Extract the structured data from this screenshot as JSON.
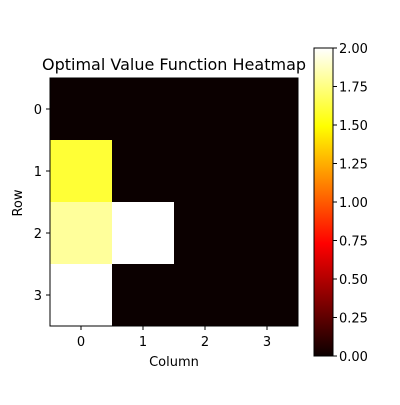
{
  "chart_data": {
    "type": "heatmap",
    "title": "Optimal Value Function Heatmap",
    "xlabel": "Column",
    "ylabel": "Row",
    "x_ticks": [
      "0",
      "1",
      "2",
      "3"
    ],
    "y_ticks": [
      "0",
      "1",
      "2",
      "3"
    ],
    "values": [
      [
        0.0,
        0.0,
        0.0,
        0.0
      ],
      [
        1.6,
        0.0,
        0.0,
        0.0
      ],
      [
        1.8,
        2.0,
        0.0,
        0.0
      ],
      [
        2.0,
        0.0,
        0.0,
        0.0
      ]
    ],
    "colormap": "hot",
    "vmin": 0.0,
    "vmax": 2.0,
    "colorbar_ticks": [
      "0.00",
      "0.25",
      "0.50",
      "0.75",
      "1.00",
      "1.25",
      "1.50",
      "1.75",
      "2.00"
    ],
    "grid": false
  }
}
